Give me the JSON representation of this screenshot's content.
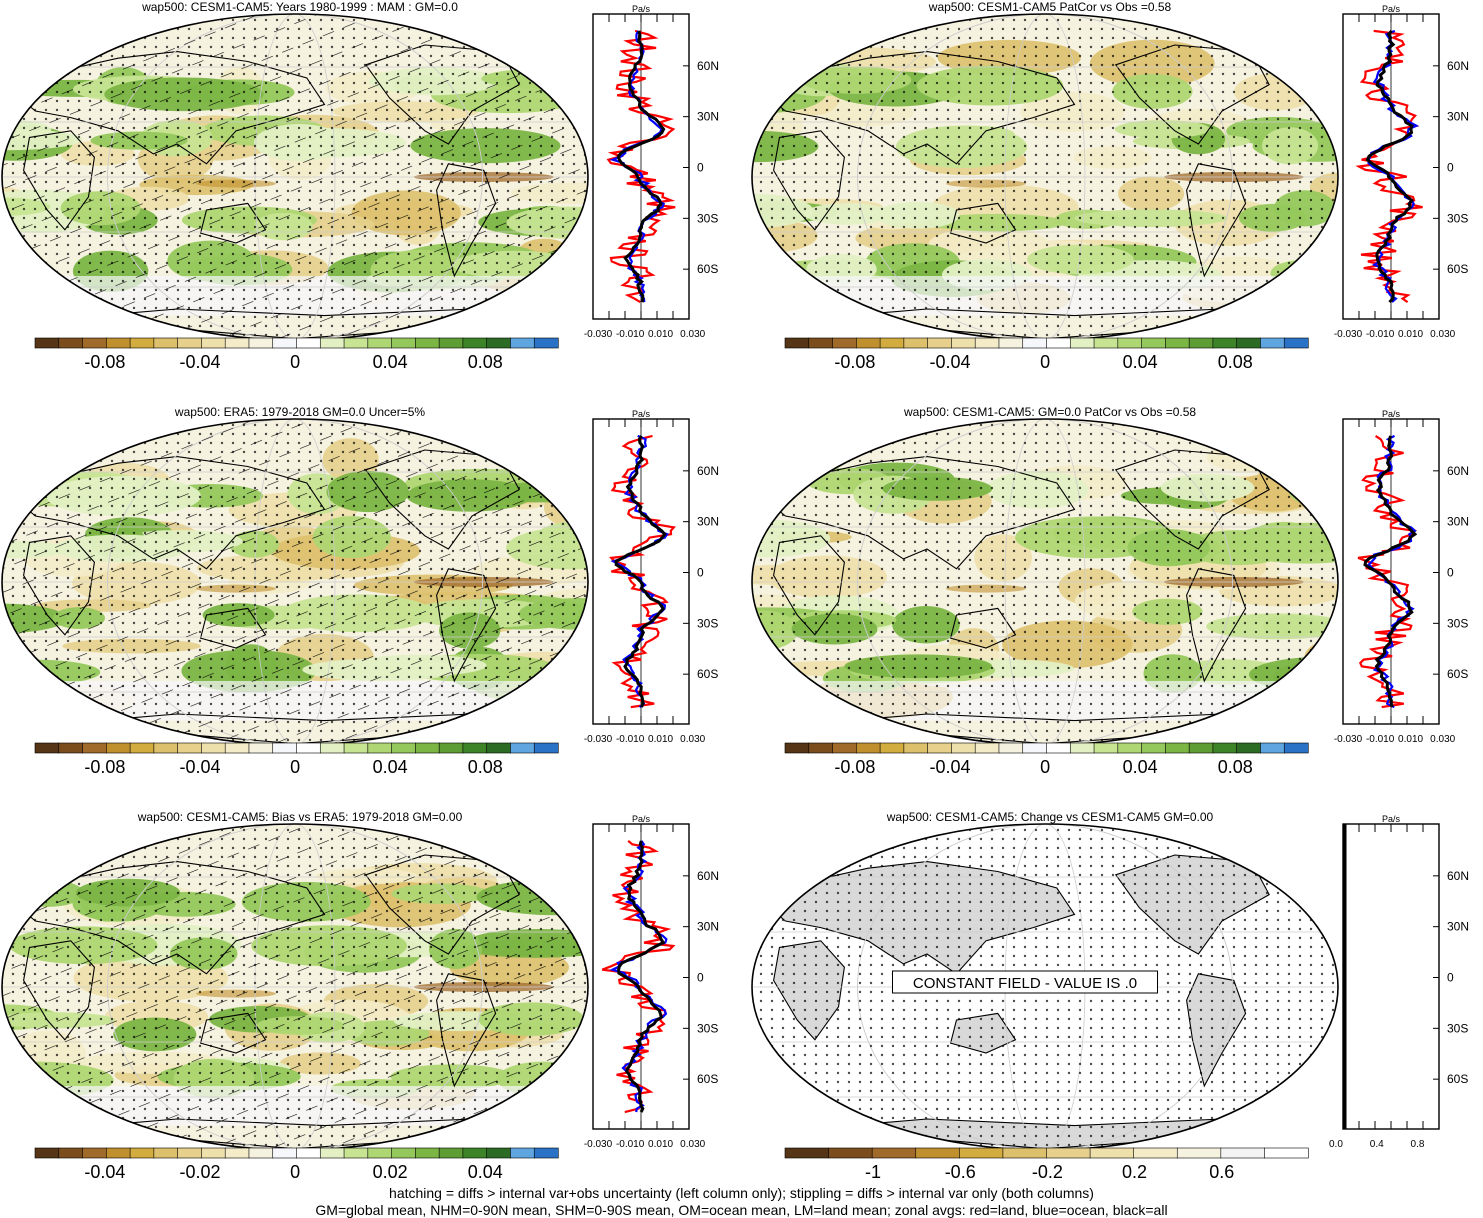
{
  "palette_11": [
    "#553516",
    "#7b4d1c",
    "#a06a2b",
    "#c1902e",
    "#d2ac3e",
    "#ddc06c",
    "#e6d08c",
    "#eee0ab",
    "#f4ecc9",
    "#f6f2e0",
    "#f6f7fb",
    "#ffffff",
    "#e3f0c4",
    "#c7e493",
    "#aed672",
    "#95c85c",
    "#7bb544",
    "#5e9d33",
    "#3d8429",
    "#2b6b23",
    "#5fa6e0",
    "#2a72c6"
  ],
  "palette_change": [
    "#553516",
    "#7b4d1c",
    "#a06a2b",
    "#c1902e",
    "#d2ac3e",
    "#ddc06c",
    "#e6d08c",
    "#eee0ab",
    "#f4ecc9",
    "#f6f2e0",
    "#f4f4f4",
    "#ffffff"
  ],
  "line_colors": {
    "land": "#ff0000",
    "ocean": "#0000ff",
    "all": "#000000"
  },
  "panels": [
    {
      "title": "wap500: CESM1-CAM5: Years 1980-1999 : MAM : GM=0.0",
      "colorbar": {
        "labels": [
          "-0.08",
          "-0.04",
          "0",
          "0.04",
          "0.08"
        ],
        "palette": "palette_11",
        "hatching": true
      },
      "zonal": {
        "unit": "Pa/s",
        "lat_labels": [
          "60N",
          "30N",
          "0",
          "30S",
          "60S"
        ],
        "x_labels": [
          "-0.030",
          "-0.010",
          "0.010",
          "0.030"
        ]
      }
    },
    {
      "title": "wap500: CESM1-CAM5 PatCor vs Obs =0.58",
      "colorbar": {
        "labels": [
          "-0.08",
          "-0.04",
          "0",
          "0.04",
          "0.08"
        ],
        "palette": "palette_11",
        "hatching": false
      },
      "zonal": {
        "unit": "Pa/s",
        "lat_labels": [
          "60N",
          "30N",
          "0",
          "30S",
          "60S"
        ],
        "x_labels": [
          "-0.030",
          "-0.010",
          "0.010",
          "0.030"
        ]
      }
    },
    {
      "title": "wap500: ERA5: 1979-2018 GM=0.0 Uncer=5%",
      "colorbar": {
        "labels": [
          "-0.08",
          "-0.04",
          "0",
          "0.04",
          "0.08"
        ],
        "palette": "palette_11",
        "hatching": true
      },
      "zonal": {
        "unit": "Pa/s",
        "lat_labels": [
          "60N",
          "30N",
          "0",
          "30S",
          "60S"
        ],
        "x_labels": [
          "-0.030",
          "-0.010",
          "0.010",
          "0.030"
        ]
      }
    },
    {
      "title": "wap500: CESM1-CAM5: GM=0.0 PatCor vs Obs =0.58",
      "colorbar": {
        "labels": [
          "-0.08",
          "-0.04",
          "0",
          "0.04",
          "0.08"
        ],
        "palette": "palette_11",
        "hatching": false
      },
      "zonal": {
        "unit": "Pa/s",
        "lat_labels": [
          "60N",
          "30N",
          "0",
          "30S",
          "60S"
        ],
        "x_labels": [
          "-0.030",
          "-0.010",
          "0.010",
          "0.030"
        ]
      }
    },
    {
      "title": "wap500: CESM1-CAM5: Bias vs ERA5: 1979-2018 GM=0.00",
      "colorbar": {
        "labels": [
          "-0.04",
          "-0.02",
          "0",
          "0.02",
          "0.04"
        ],
        "palette": "palette_11",
        "hatching": true
      },
      "zonal": {
        "unit": "Pa/s",
        "lat_labels": [
          "60N",
          "30N",
          "0",
          "30S",
          "60S"
        ],
        "x_labels": [
          "-0.030",
          "-0.010",
          "0.010",
          "0.030"
        ]
      }
    },
    {
      "title": "wap500: CESM1-CAM5: Change vs CESM1-CAM5 GM=0.00",
      "colorbar": {
        "labels": [
          "-1",
          "-0.6",
          "-0.2",
          "0.2",
          "0.6"
        ],
        "palette": "palette_change",
        "hatching": false
      },
      "zonal": {
        "unit": "Pa/s",
        "lat_labels": [
          "60N",
          "30N",
          "0",
          "30S",
          "60S"
        ],
        "x_labels": [
          "0.0",
          "0.4",
          "0.8"
        ]
      },
      "message": "CONSTANT FIELD - VALUE IS .0"
    }
  ],
  "footer": {
    "line1": "hatching = diffs > internal var+obs uncertainty (left column only); stippling = diffs > internal var only (both columns)",
    "line2": "GM=global mean, NHM=0-90N mean, SHM=0-90S mean, OM=ocean mean, LM=land mean; zonal avgs: red=land, blue=ocean, black=all"
  },
  "chart_data": [
    {
      "type": "heatmap",
      "title": "wap500: CESM1-CAM5: Years 1980-1999 : MAM : GM=0.0",
      "colorbar_ticks": [
        -0.08,
        -0.04,
        0,
        0.04,
        0.08
      ],
      "zonal_profile": {
        "type": "line",
        "xlabel": "Pa/s",
        "xlim": [
          -0.03,
          0.03
        ],
        "lat_ticks": [
          "60N",
          "30N",
          "0",
          "30S",
          "60S"
        ],
        "series": [
          "land",
          "ocean",
          "all"
        ]
      }
    },
    {
      "type": "heatmap",
      "title": "wap500: CESM1-CAM5 PatCor vs Obs =0.58",
      "colorbar_ticks": [
        -0.08,
        -0.04,
        0,
        0.04,
        0.08
      ],
      "zonal_profile": {
        "type": "line",
        "xlabel": "Pa/s",
        "xlim": [
          -0.03,
          0.03
        ],
        "lat_ticks": [
          "60N",
          "30N",
          "0",
          "30S",
          "60S"
        ],
        "series": [
          "land",
          "ocean",
          "all"
        ]
      }
    },
    {
      "type": "heatmap",
      "title": "wap500: ERA5: 1979-2018 GM=0.0 Uncer=5%",
      "colorbar_ticks": [
        -0.08,
        -0.04,
        0,
        0.04,
        0.08
      ],
      "zonal_profile": {
        "type": "line",
        "xlabel": "Pa/s",
        "xlim": [
          -0.03,
          0.03
        ],
        "lat_ticks": [
          "60N",
          "30N",
          "0",
          "30S",
          "60S"
        ],
        "series": [
          "land",
          "ocean",
          "all"
        ]
      }
    },
    {
      "type": "heatmap",
      "title": "wap500: CESM1-CAM5: GM=0.0 PatCor vs Obs =0.58",
      "colorbar_ticks": [
        -0.08,
        -0.04,
        0,
        0.04,
        0.08
      ],
      "zonal_profile": {
        "type": "line",
        "xlabel": "Pa/s",
        "xlim": [
          -0.03,
          0.03
        ],
        "lat_ticks": [
          "60N",
          "30N",
          "0",
          "30S",
          "60S"
        ],
        "series": [
          "land",
          "ocean",
          "all"
        ]
      }
    },
    {
      "type": "heatmap",
      "title": "wap500: CESM1-CAM5: Bias vs ERA5: 1979-2018 GM=0.00",
      "colorbar_ticks": [
        -0.04,
        -0.02,
        0,
        0.02,
        0.04
      ],
      "zonal_profile": {
        "type": "line",
        "xlabel": "Pa/s",
        "xlim": [
          -0.03,
          0.03
        ],
        "lat_ticks": [
          "60N",
          "30N",
          "0",
          "30S",
          "60S"
        ],
        "series": [
          "land",
          "ocean",
          "all"
        ]
      }
    },
    {
      "type": "heatmap",
      "title": "wap500: CESM1-CAM5: Change vs CESM1-CAM5 GM=0.00",
      "colorbar_ticks": [
        -1,
        -0.6,
        -0.2,
        0.2,
        0.6
      ],
      "zonal_profile": {
        "type": "line",
        "xlabel": "Pa/s",
        "xlim": [
          0,
          1
        ],
        "lat_ticks": [
          "60N",
          "30N",
          "0",
          "30S",
          "60S"
        ],
        "series": [
          "all"
        ]
      }
    }
  ]
}
